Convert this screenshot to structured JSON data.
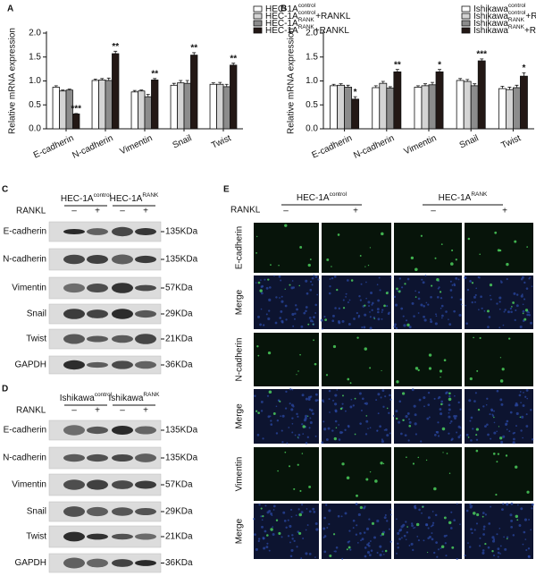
{
  "chart_data": [
    {
      "type": "bar",
      "panel_label": "A",
      "ylabel": "Relative mRNA expression",
      "categories": [
        "E-cadherin",
        "N-cadherin",
        "Vimentin",
        "Snail",
        "Twist"
      ],
      "series": [
        {
          "name": "HEC-1A",
          "name_sup": "control",
          "color": "#ffffff",
          "values": [
            0.87,
            1.01,
            0.77,
            0.91,
            0.93
          ],
          "errors": [
            0.03,
            0.03,
            0.03,
            0.04,
            0.03
          ]
        },
        {
          "name": "HEC-1A",
          "name_sup": "control",
          "name_suffix": "+RANKL",
          "color": "#d4d4d4",
          "values": [
            0.79,
            1.02,
            0.79,
            0.96,
            0.93
          ],
          "errors": [
            0.02,
            0.03,
            0.02,
            0.05,
            0.04
          ]
        },
        {
          "name": "HEC-1A",
          "name_sup": "RANK",
          "color": "#8c8c8c",
          "values": [
            0.81,
            1.01,
            0.67,
            0.95,
            0.88
          ],
          "errors": [
            0.02,
            0.05,
            0.05,
            0.06,
            0.05
          ]
        },
        {
          "name": "HEC-1A",
          "name_sup": "RANK",
          "name_suffix": "+RANKL",
          "color": "#231815",
          "values": [
            0.31,
            1.57,
            1.02,
            1.54,
            1.33
          ],
          "errors": [
            0.01,
            0.05,
            0.03,
            0.05,
            0.04
          ]
        }
      ],
      "significance": [
        "***",
        "**",
        "**",
        "**",
        "**"
      ],
      "ylim": [
        0,
        2.0
      ],
      "yticks": [
        {
          "value": 0,
          "label": "0.0"
        },
        {
          "value": 0.5,
          "label": "0.5"
        },
        {
          "value": 1.0,
          "label": "1.0"
        },
        {
          "value": 1.5,
          "label": "1.5"
        },
        {
          "value": 2.0,
          "label": "2.0"
        }
      ]
    },
    {
      "type": "bar",
      "panel_label": "B",
      "ylabel": "Relative mRNA expression",
      "categories": [
        "E-cadherin",
        "N-cadherin",
        "Vimentin",
        "Snail",
        "Twist"
      ],
      "series": [
        {
          "name": "Ishikawa",
          "name_sup": "control",
          "color": "#ffffff",
          "values": [
            0.9,
            0.86,
            0.87,
            1.01,
            0.84
          ],
          "errors": [
            0.03,
            0.04,
            0.03,
            0.04,
            0.05
          ]
        },
        {
          "name": "Ishikawa",
          "name_sup": "control",
          "name_suffix": "+RANKL",
          "color": "#d4d4d4",
          "values": [
            0.91,
            0.95,
            0.9,
            0.99,
            0.82
          ],
          "errors": [
            0.03,
            0.04,
            0.04,
            0.04,
            0.05
          ]
        },
        {
          "name": "Ishikawa",
          "name_sup": "RANK",
          "color": "#8c8c8c",
          "values": [
            0.87,
            0.85,
            0.92,
            0.9,
            0.86
          ],
          "errors": [
            0.04,
            0.03,
            0.05,
            0.04,
            0.05
          ]
        },
        {
          "name": "Ishikawa",
          "name_sup": "RANK",
          "name_suffix": "+RANKL",
          "color": "#231815",
          "values": [
            0.62,
            1.19,
            1.19,
            1.42,
            1.1
          ],
          "errors": [
            0.05,
            0.05,
            0.05,
            0.04,
            0.07
          ]
        }
      ],
      "significance": [
        "*",
        "**",
        "*",
        "***",
        "*"
      ],
      "ylim": [
        0,
        2.0
      ],
      "yticks": [
        {
          "value": 0,
          "label": "0.0"
        },
        {
          "value": 0.5,
          "label": "0.5"
        },
        {
          "value": 1.0,
          "label": "1.0"
        },
        {
          "value": 1.5,
          "label": "1.5"
        },
        {
          "value": 2.0,
          "label": "2.0"
        }
      ]
    }
  ],
  "blot_c": {
    "panel_label": "C",
    "groups": [
      {
        "name": "HEC-1A",
        "sup": "control"
      },
      {
        "name": "HEC-1A",
        "sup": "RANK"
      }
    ],
    "treatment_label": "RANKL",
    "lanes": [
      "–",
      "+",
      "–",
      "+"
    ],
    "rows": [
      {
        "label": "E-cadherin",
        "size": "135KDa"
      },
      {
        "label": "N-cadherin",
        "size": "135KDa"
      },
      {
        "label": "Vimentin",
        "size": "57KDa"
      },
      {
        "label": "Snail",
        "size": "29KDa"
      },
      {
        "label": "Twist",
        "size": "21KDa"
      },
      {
        "label": "GAPDH",
        "size": "36KDa"
      }
    ]
  },
  "blot_d": {
    "panel_label": "D",
    "groups": [
      {
        "name": "Ishikawa",
        "sup": "control"
      },
      {
        "name": "Ishikawa",
        "sup": "RANK"
      }
    ],
    "treatment_label": "RANKL",
    "lanes": [
      "–",
      "+",
      "–",
      "+"
    ],
    "rows": [
      {
        "label": "E-cadherin",
        "size": "135KDa"
      },
      {
        "label": "N-cadherin",
        "size": "135KDa"
      },
      {
        "label": "Vimentin",
        "size": "57KDa"
      },
      {
        "label": "Snail",
        "size": "29KDa"
      },
      {
        "label": "Twist",
        "size": "21KDa"
      },
      {
        "label": "GAPDH",
        "size": "36KDa"
      }
    ]
  },
  "micrographs": {
    "panel_label": "E",
    "groups": [
      {
        "name": "HEC-1A",
        "sup": "control"
      },
      {
        "name": "HEC-1A",
        "sup": "RANK"
      }
    ],
    "treatment_label": "RANKL",
    "lanes": [
      "–",
      "+",
      "–",
      "+"
    ],
    "rows": [
      "E-cadherin",
      "Merge",
      "N-cadherin",
      "Merge",
      "Vimentin",
      "Merge"
    ]
  }
}
